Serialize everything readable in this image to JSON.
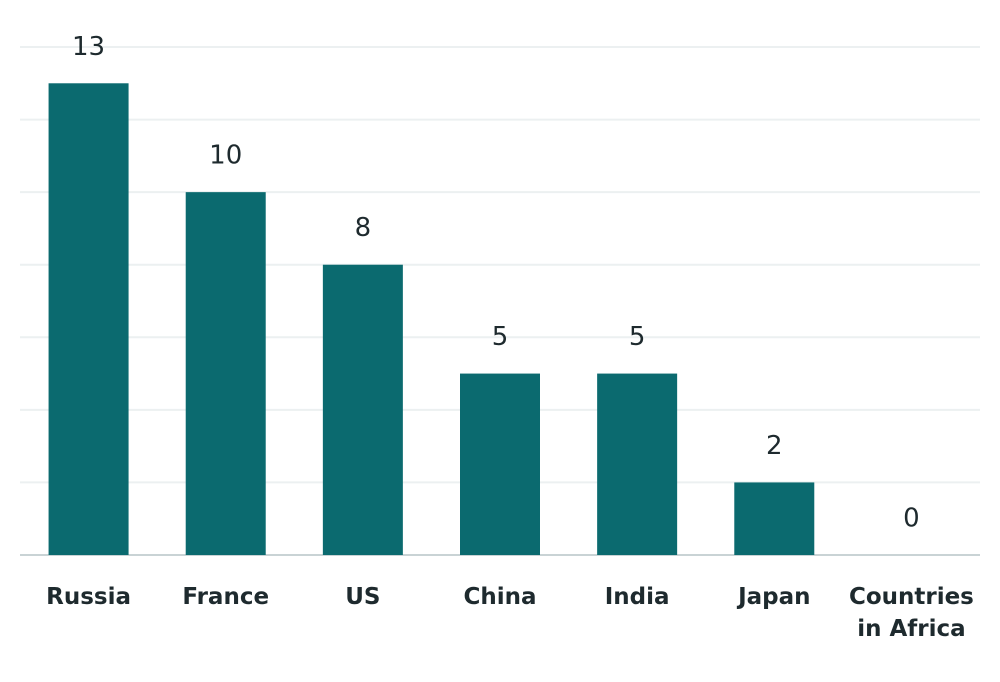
{
  "chart_data": {
    "type": "bar",
    "categories": [
      "Russia",
      "France",
      "US",
      "China",
      "India",
      "Japan",
      "Countries in Africa"
    ],
    "values": [
      13,
      10,
      8,
      5,
      5,
      2,
      0
    ],
    "color": "#0b6a6f",
    "ylim": [
      0,
      14
    ],
    "yticks": [
      0,
      2,
      4,
      6,
      8,
      10,
      12,
      14
    ],
    "grid": true
  }
}
